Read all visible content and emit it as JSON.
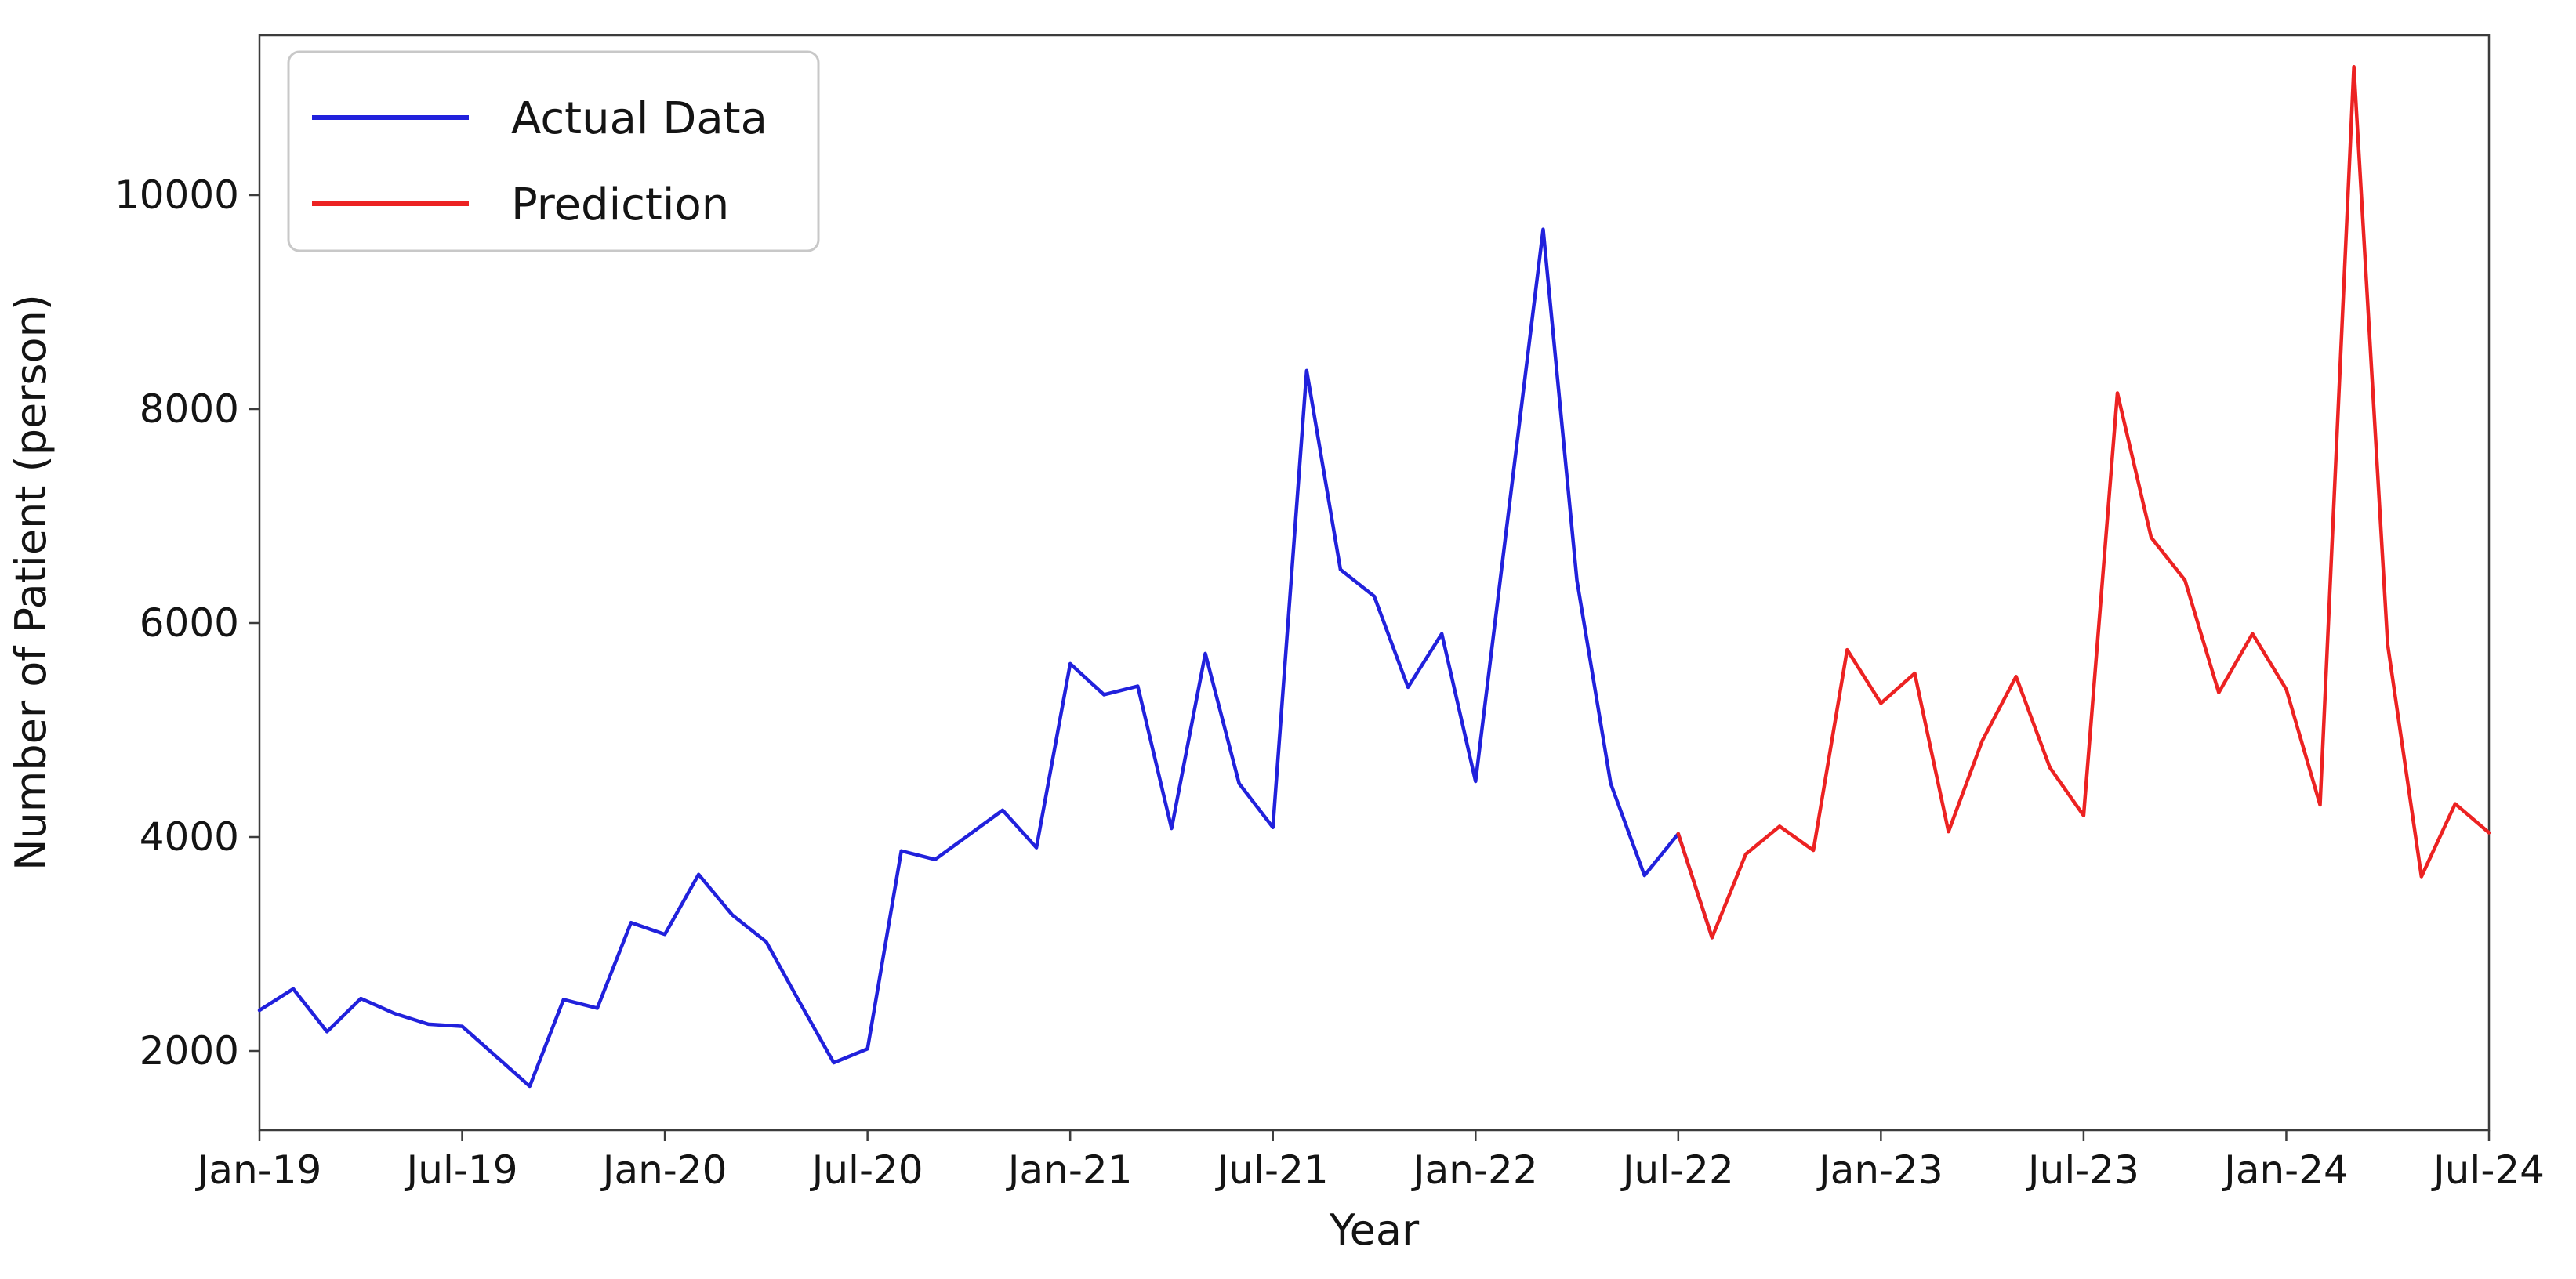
{
  "chart_data": {
    "type": "line",
    "title": "",
    "xlabel": "Year",
    "ylabel": "Number of Patient (person)",
    "x_axis": {
      "unit": "month",
      "categories": [
        "Jan-19",
        "Feb-19",
        "Mar-19",
        "Apr-19",
        "May-19",
        "Jun-19",
        "Jul-19",
        "Aug-19",
        "Sep-19",
        "Oct-19",
        "Nov-19",
        "Dec-19",
        "Jan-20",
        "Feb-20",
        "Mar-20",
        "Apr-20",
        "May-20",
        "Jun-20",
        "Jul-20",
        "Aug-20",
        "Sep-20",
        "Oct-20",
        "Nov-20",
        "Dec-20",
        "Jan-21",
        "Feb-21",
        "Mar-21",
        "Apr-21",
        "May-21",
        "Jun-21",
        "Jul-21",
        "Aug-21",
        "Sep-21",
        "Oct-21",
        "Nov-21",
        "Dec-21",
        "Jan-22",
        "Feb-22",
        "Mar-22",
        "Apr-22",
        "May-22",
        "Jun-22",
        "Jul-22",
        "Aug-22",
        "Sep-22",
        "Oct-22",
        "Nov-22",
        "Dec-22",
        "Jan-23",
        "Feb-23",
        "Mar-23",
        "Apr-23",
        "May-23",
        "Jun-23",
        "Jul-23",
        "Aug-23",
        "Sep-23",
        "Oct-23",
        "Nov-23",
        "Dec-23",
        "Jan-24",
        "Feb-24",
        "Mar-24",
        "Apr-24",
        "May-24",
        "Jun-24",
        "Jul-24"
      ],
      "tick_labels": [
        "Jan-19",
        "Jul-19",
        "Jan-20",
        "Jul-20",
        "Jan-21",
        "Jul-21",
        "Jan-22",
        "Jul-22",
        "Jan-23",
        "Jul-23",
        "Jan-24",
        "Jul-24"
      ],
      "tick_month_indices": [
        0,
        6,
        12,
        18,
        24,
        30,
        36,
        42,
        48,
        54,
        60,
        66
      ]
    },
    "y_axis": {
      "tick_labels": [
        "2000",
        "4000",
        "6000",
        "8000",
        "10000"
      ],
      "tick_values": [
        2000,
        4000,
        6000,
        8000,
        10000
      ],
      "range_approx": [
        1250,
        11500
      ],
      "grid": false
    },
    "legend": {
      "position": "upper-left",
      "entries": [
        "Actual Data",
        "Prediction"
      ]
    },
    "series": [
      {
        "name": "Actual Data",
        "color": "#2121dc",
        "start_month_index": 0,
        "values": [
          2380,
          2580,
          2180,
          2490,
          2350,
          2250,
          2230,
          1950,
          1670,
          2480,
          2400,
          3200,
          3090,
          3650,
          3270,
          3020,
          2450,
          1890,
          2020,
          3870,
          3790,
          4020,
          4250,
          3900,
          5620,
          5330,
          5410,
          4080,
          5715,
          4500,
          4090,
          8360,
          6500,
          6250,
          5400,
          5900,
          4520,
          7100,
          9680,
          6400,
          4500,
          3640,
          4030,
          3060
        ]
      },
      {
        "name": "Prediction",
        "color": "#ec2222",
        "start_month_index": 42,
        "values": [
          4030,
          3060,
          3840,
          4100,
          3875,
          5750,
          5250,
          5530,
          4050,
          4900,
          5500,
          4650,
          4200,
          8150,
          6800,
          6400,
          5350,
          5900,
          5380,
          4300,
          11200,
          5800,
          3630,
          4310,
          4040
        ]
      }
    ]
  },
  "labels": {
    "xlabel": "Year",
    "ylabel": "Number of Patient (person)",
    "legend_actual": "Actual Data",
    "legend_prediction": "Prediction"
  },
  "style": {
    "plot_bg": "#ffffff",
    "spine_color": "#3c3c3c",
    "tick_text_color": "#141414",
    "actual_color": "#2121dc",
    "prediction_color": "#ec2222",
    "legend_border_color": "#c8c8c8"
  }
}
